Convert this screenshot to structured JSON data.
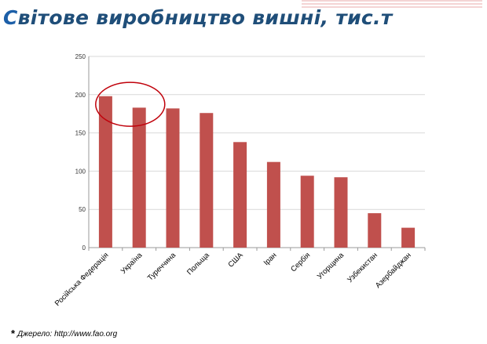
{
  "title": {
    "first_letter": "С",
    "rest": "вітове виробництво вишні, тис.т"
  },
  "source": {
    "marker": "*",
    "text": "Джерело: http://www.fao.org"
  },
  "colors": {
    "bar": "#c0504d",
    "title": "#1f4e79",
    "highlight": "#c0000a"
  },
  "chart_data": {
    "type": "bar",
    "title": "",
    "xlabel": "",
    "ylabel": "",
    "categories": [
      "Російська Федерація",
      "Україна",
      "Туреччина",
      "Польща",
      "США",
      "Іран",
      "Сербія",
      "Угорщина",
      "Узбекистан",
      "Азербайджан"
    ],
    "values": [
      198,
      183,
      182,
      176,
      138,
      112,
      94,
      92,
      45,
      26
    ],
    "ylim": [
      0,
      250
    ],
    "yticks": [
      0,
      50,
      100,
      150,
      200,
      250
    ],
    "grid": true,
    "legend": "none",
    "highlighted_categories": [
      "Російська Федерація",
      "Україна"
    ]
  }
}
